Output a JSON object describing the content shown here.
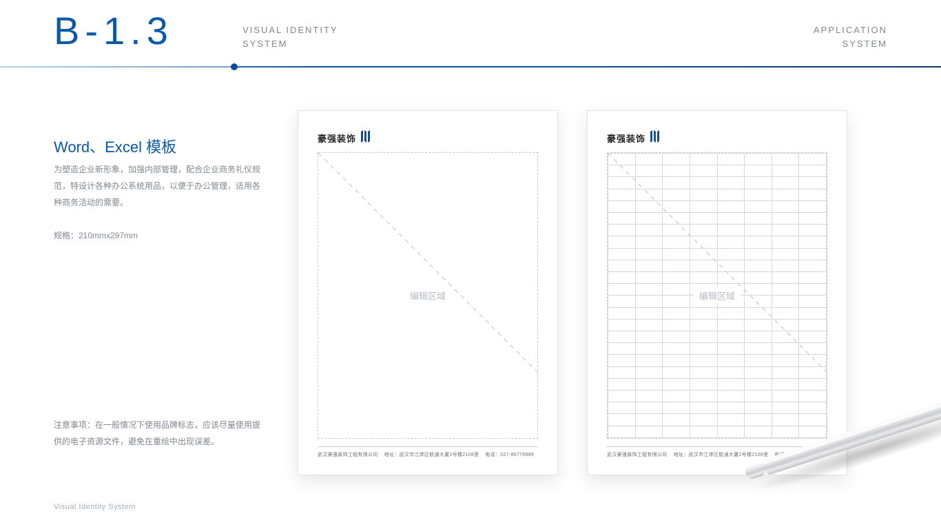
{
  "header": {
    "code": "B-1.3",
    "left_line1": "VISUAL IDENTITY",
    "left_line2": "SYSTEM",
    "right_line1": "APPLICATION",
    "right_line2": "SYSTEM"
  },
  "left_panel": {
    "title": "Word、Excel 模板",
    "paragraph": "为塑造企业新形象，加强内部管理，配合企业商务礼仪规范，特设计各种办公系统用品，以便于办公管理，适用各种商务活动的需要。",
    "spec": "规格：210mmx297mm",
    "note": "注意事项：在一般情况下使用品牌标志，应该尽量使用提供的电子资源文件，避免在重绘中出现误差。"
  },
  "footer_label": "Visual Identity System",
  "templates": {
    "logo_text": "豪强装饰",
    "logo_color": "#1a4f8f",
    "edit_label": "编辑区域",
    "footer_company": "武汉豪强装饰工程有限公司",
    "footer_address_label": "地址：",
    "footer_address": "武汉市江岸区航通大厦2号楼2108室",
    "footer_tel_label": "电话：",
    "footer_tel": "027-85776889",
    "paper_border": "#e0e2e5",
    "dash_color": "#c7cbd0",
    "grid_line": "#d4d8dd",
    "grid_rows": 24,
    "grid_cols": 8
  },
  "colors": {
    "brand_blue": "#0a5aa8",
    "text_gray": "#808890",
    "bg": "#ffffff"
  }
}
